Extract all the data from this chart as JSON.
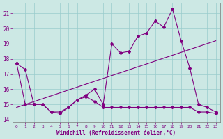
{
  "xlabel": "Windchill (Refroidissement éolien,°C)",
  "background_color": "#cce8e4",
  "line_color": "#800080",
  "grid_color": "#99cccc",
  "xlim": [
    -0.5,
    23.5
  ],
  "ylim": [
    13.8,
    21.7
  ],
  "yticks": [
    14,
    15,
    16,
    17,
    18,
    19,
    20,
    21
  ],
  "xticks": [
    0,
    1,
    2,
    3,
    4,
    5,
    6,
    7,
    8,
    9,
    10,
    11,
    12,
    13,
    14,
    15,
    16,
    17,
    18,
    19,
    20,
    21,
    22,
    23
  ],
  "series1_x": [
    0,
    1,
    2,
    3,
    4,
    5,
    6,
    7,
    8,
    9,
    10,
    11,
    12,
    13,
    14,
    15,
    16,
    17,
    18,
    19,
    20,
    21,
    22,
    23
  ],
  "series1_y": [
    17.7,
    17.3,
    15.0,
    15.0,
    14.5,
    14.4,
    14.8,
    15.3,
    15.6,
    16.0,
    15.0,
    19.0,
    18.4,
    18.5,
    19.5,
    19.7,
    20.5,
    20.1,
    21.3,
    19.2,
    17.4,
    15.0,
    14.8,
    14.5
  ],
  "series2_x": [
    0,
    1,
    2,
    3,
    4,
    5,
    6,
    7,
    8,
    9,
    10,
    11,
    12,
    13,
    14,
    15,
    16,
    17,
    18,
    19,
    20,
    21,
    22,
    23
  ],
  "series2_y": [
    17.7,
    15.0,
    15.0,
    15.0,
    14.5,
    14.5,
    14.8,
    15.3,
    15.5,
    15.2,
    14.8,
    14.8,
    14.8,
    14.8,
    14.8,
    14.8,
    14.8,
    14.8,
    14.8,
    14.8,
    14.8,
    14.5,
    14.5,
    14.4
  ],
  "series3_x": [
    0,
    23
  ],
  "series3_y": [
    14.8,
    19.2
  ]
}
